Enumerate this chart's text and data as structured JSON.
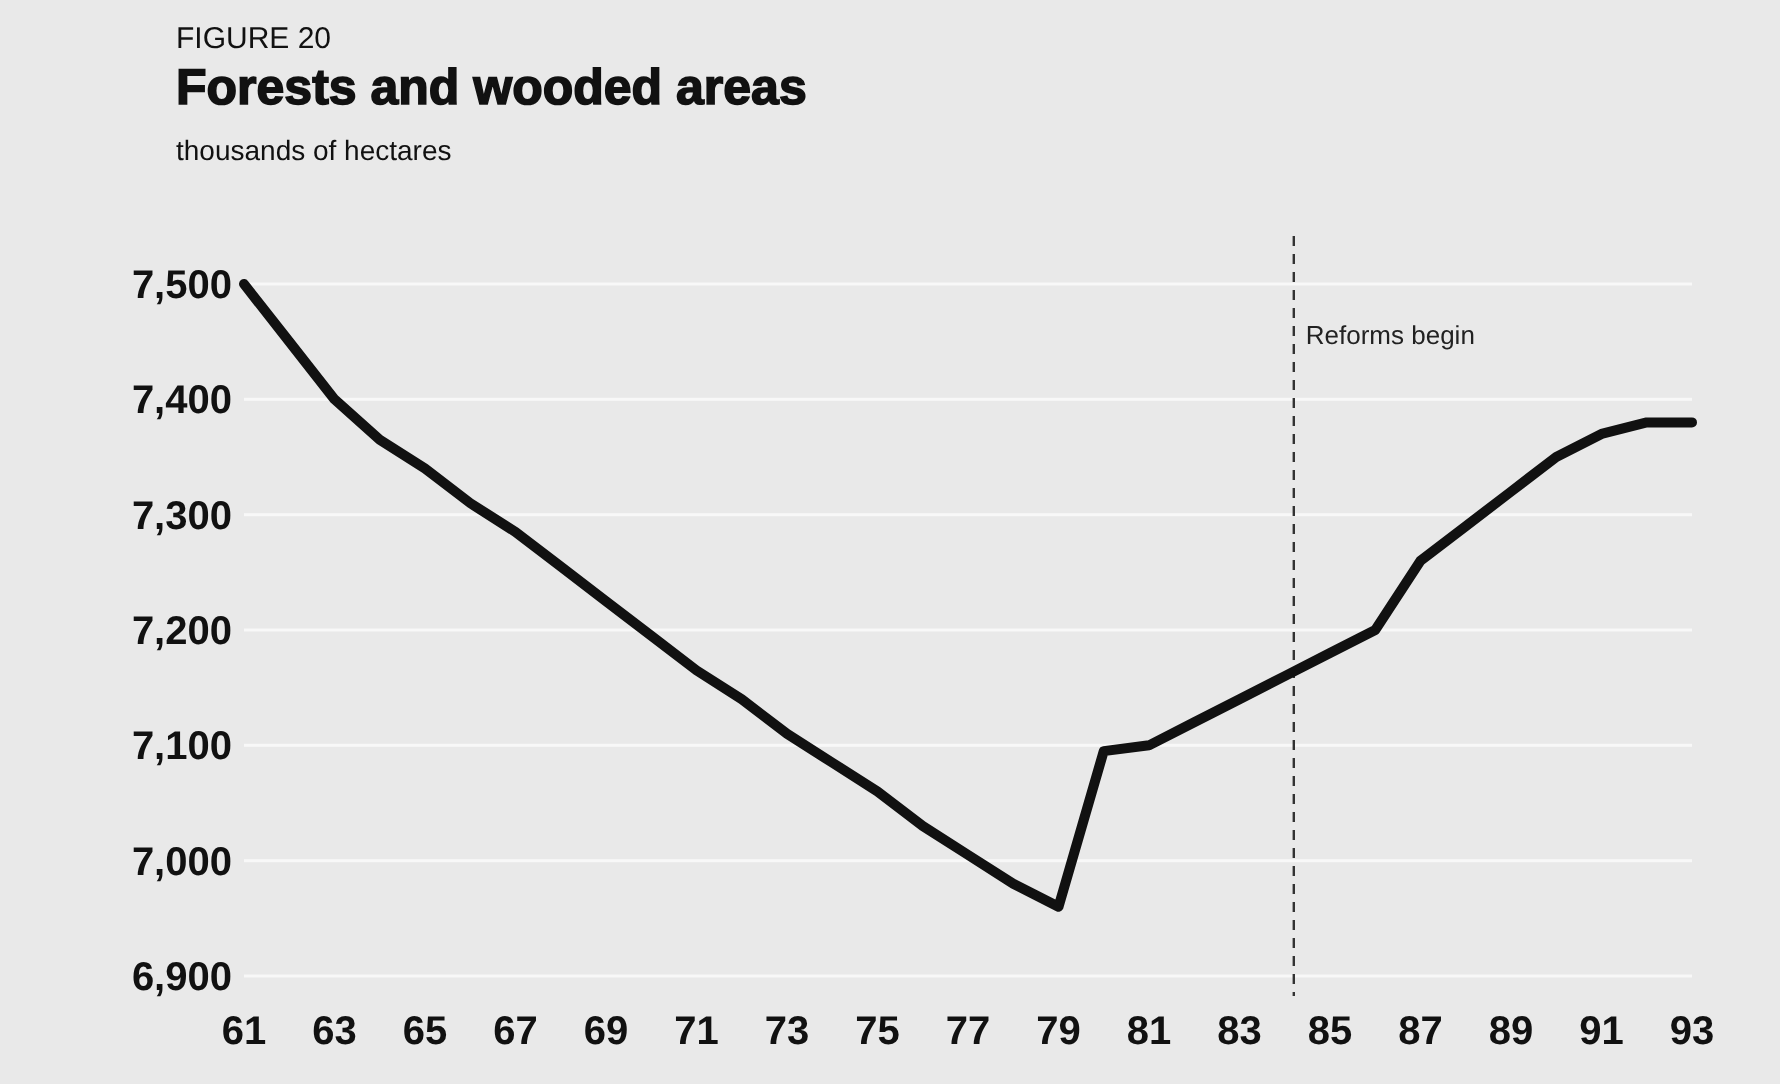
{
  "chart_data": {
    "type": "line",
    "title": "Forests and wooded areas",
    "subtitle": "thousands of hectares",
    "annotations": [
      "FIGURE 20"
    ],
    "x": [
      61,
      62,
      63,
      64,
      65,
      66,
      67,
      68,
      69,
      70,
      71,
      72,
      73,
      74,
      75,
      76,
      77,
      78,
      79,
      80,
      81,
      82,
      83,
      84,
      85,
      86,
      87,
      88,
      89,
      90,
      91,
      92,
      93
    ],
    "series": [
      {
        "color": "#111111",
        "values": [
          7500,
          7450,
          7400,
          7365,
          7340,
          7310,
          7285,
          7255,
          7225,
          7195,
          7165,
          7140,
          7110,
          7085,
          7060,
          7030,
          7005,
          6980,
          6960,
          7095,
          7100,
          7120,
          7140,
          7160,
          7180,
          7200,
          7260,
          7290,
          7320,
          7350,
          7370,
          7380,
          7380
        ]
      }
    ],
    "xlim": [
      61,
      93
    ],
    "xticks": [
      61,
      63,
      65,
      67,
      69,
      71,
      73,
      75,
      77,
      79,
      81,
      83,
      85,
      87,
      89,
      91,
      93
    ],
    "ylim": [
      6900,
      7500
    ],
    "yticks": [
      {
        "value": 6900,
        "label": "6,900"
      },
      {
        "value": 7000,
        "label": "7,000"
      },
      {
        "value": 7100,
        "label": "7,100"
      },
      {
        "value": 7200,
        "label": "7,200"
      },
      {
        "value": 7300,
        "label": "7,300"
      },
      {
        "value": 7400,
        "label": "7,400"
      },
      {
        "value": 7500,
        "label": "7,500"
      }
    ],
    "grid": "y",
    "marker": "none",
    "line_style": "solid",
    "ref_lines": [
      {
        "axis": "x",
        "value": 84.2,
        "label": "Reforms begin",
        "line_style": "dashed",
        "color": "#333333"
      }
    ]
  }
}
